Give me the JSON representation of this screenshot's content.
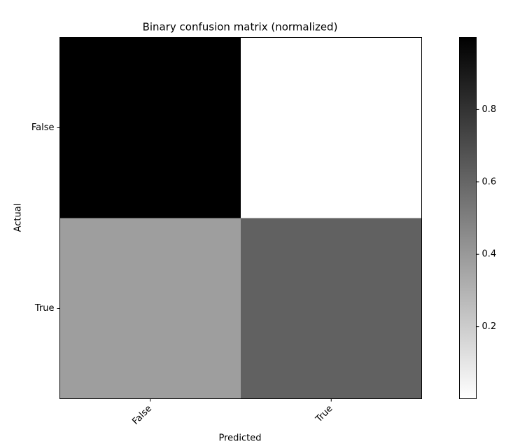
{
  "chart_data": {
    "type": "heatmap",
    "title": "Binary confusion matrix (normalized)",
    "x_label": "Predicted",
    "y_label": "Actual",
    "x_categories": [
      "False",
      "True"
    ],
    "y_categories": [
      "False",
      "True"
    ],
    "values": [
      [
        0.999,
        0.001
      ],
      [
        0.38,
        0.62
      ]
    ],
    "cmap": "gray_r",
    "colorbar": {
      "lim": [
        0.001,
        0.999
      ],
      "ticks": [
        0.2,
        0.4,
        0.6,
        0.8
      ]
    }
  }
}
